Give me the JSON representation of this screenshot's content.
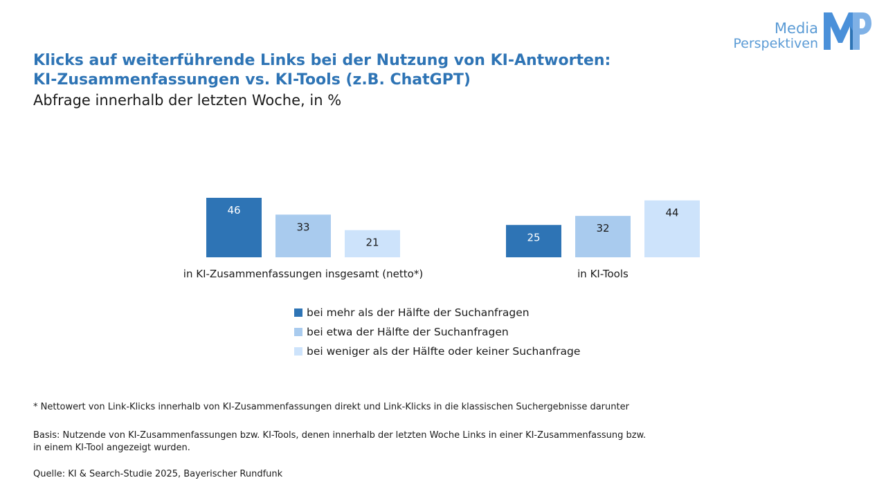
{
  "header": {
    "title_line1": "Klicks auf weiterführende Links bei der Nutzung von KI-Antworten:",
    "title_line2": "KI-Zusammenfassungen vs. KI-Tools (z.B. ChatGPT)",
    "subtitle": "Abfrage innerhalb der letzten Woche, in %"
  },
  "logo": {
    "line1": "Media",
    "line2": "Perspektiven",
    "mark": "MP",
    "color": "#5b9bd5"
  },
  "chart_data": {
    "type": "bar",
    "categories": [
      "in KI-Zusammenfassungen insgesamt (netto*)",
      "in KI-Tools"
    ],
    "series": [
      {
        "name": "bei mehr als der Hälfte der Suchanfragen",
        "values": [
          46,
          25
        ],
        "color": "#2e74b5",
        "label_color": "#ffffff"
      },
      {
        "name": "bei etwa der Hälfte der Suchanfragen",
        "values": [
          33,
          32
        ],
        "color": "#a9cbee",
        "label_color": "#1a1a1a"
      },
      {
        "name": "bei weniger als der Hälfte oder keiner Suchanfrage",
        "values": [
          21,
          44
        ],
        "color": "#cde3fb",
        "label_color": "#1a1a1a"
      }
    ],
    "ylim": [
      0,
      50
    ],
    "grid": false,
    "legend_position": "bottom"
  },
  "notes": {
    "footnote": "* Nettowert von Link-Klicks innerhalb von KI-Zusammenfassungen direkt und Link-Klicks in die klassischen Suchergebnisse darunter",
    "basis_line1": "Basis: Nutzende von KI-Zusammenfassungen bzw. KI-Tools, denen innerhalb der letzten Woche Links in einer KI-Zusammenfassung bzw.",
    "basis_line2": "in einem KI-Tool angezeigt wurden.",
    "source": "Quelle: KI & Search-Studie 2025, Bayerischer Rundfunk"
  }
}
